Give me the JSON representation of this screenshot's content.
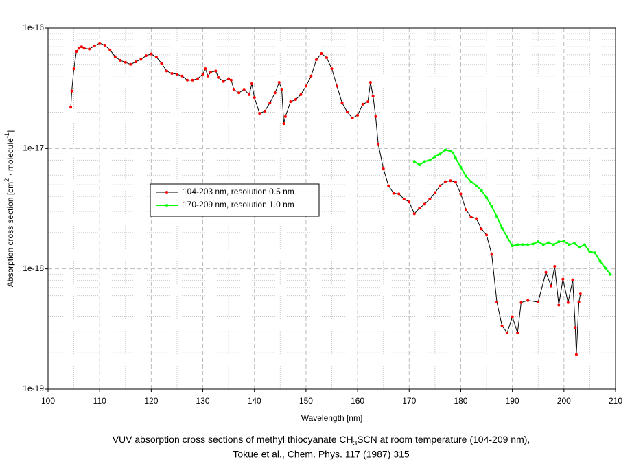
{
  "chart_data": {
    "type": "line",
    "caption": [
      "VUV absorption cross sections of methyl thiocyanate CH",
      "3",
      "SCN at room temperature (104-209 nm),",
      "Tokue et al., Chem. Phys. 117 (1987) 315"
    ],
    "xlabel": "Wavelength [nm]",
    "ylabel": [
      "Absorption cross section [cm",
      "2",
      " · molecule",
      "-1",
      "]"
    ],
    "xlim": [
      100,
      210
    ],
    "xticks": [
      100,
      110,
      120,
      130,
      140,
      150,
      160,
      170,
      180,
      190,
      200,
      210
    ],
    "ylim": [
      1e-19,
      1e-16
    ],
    "yticks": [
      1e-19,
      1e-18,
      1e-17,
      1e-16
    ],
    "log_y": true,
    "grid": true,
    "legend_position": "center-left",
    "series": [
      {
        "name": "104-203 nm, resolution 0.5 nm",
        "color": "#ff0000",
        "line_color": "#000000",
        "x": [
          104.4,
          104.6,
          105,
          105.5,
          106,
          106.5,
          107,
          108,
          109,
          110,
          111,
          112,
          113,
          114,
          115,
          116,
          117,
          118,
          119,
          120,
          121,
          122,
          123,
          124,
          125,
          126,
          127,
          128,
          129,
          130,
          130.5,
          131,
          131.5,
          132.5,
          133,
          134,
          135,
          135.5,
          136,
          137,
          138,
          139,
          139.5,
          140,
          141,
          142,
          143,
          144,
          144.8,
          145.3,
          145.7,
          146,
          147,
          148,
          149,
          150,
          151,
          152,
          153,
          154,
          155,
          156,
          157,
          158,
          159,
          160,
          161,
          162,
          162.5,
          163,
          163.5,
          164,
          165,
          166,
          167,
          168,
          169,
          170,
          171,
          172,
          173,
          174,
          175,
          176,
          177,
          178,
          179,
          180,
          181,
          182,
          183,
          184,
          185,
          186,
          187,
          188,
          189,
          190,
          191,
          191.7,
          193,
          195,
          196.5,
          197.5,
          198.2,
          199,
          199.8,
          200.8,
          201.7,
          202.2,
          202.4,
          202.9,
          203.2
        ],
        "values": [
          2.2e-17,
          3e-17,
          4.6e-17,
          6.4e-17,
          6.8e-17,
          7e-17,
          6.8e-17,
          6.7e-17,
          7.1e-17,
          7.5e-17,
          7.2e-17,
          6.6e-17,
          5.8e-17,
          5.4e-17,
          5.2e-17,
          5e-17,
          5.25e-17,
          5.5e-17,
          5.9e-17,
          6.1e-17,
          5.75e-17,
          5.1e-17,
          4.4e-17,
          4.2e-17,
          4.15e-17,
          4e-17,
          3.7e-17,
          3.7e-17,
          3.8e-17,
          4.15e-17,
          4.6e-17,
          4e-17,
          4.3e-17,
          4.4e-17,
          3.9e-17,
          3.6e-17,
          3.8e-17,
          3.7e-17,
          3.1e-17,
          2.9e-17,
          3.1e-17,
          2.8e-17,
          3.45e-17,
          2.65e-17,
          1.96e-17,
          2.04e-17,
          2.39e-17,
          2.9e-17,
          3.54e-17,
          3.1e-17,
          1.61e-17,
          1.84e-17,
          2.45e-17,
          2.55e-17,
          2.8e-17,
          3.3e-17,
          4e-17,
          5.47e-17,
          6.15e-17,
          5.68e-17,
          4.6e-17,
          3.3e-17,
          2.39e-17,
          2.01e-17,
          1.79e-17,
          1.89e-17,
          2.33e-17,
          2.45e-17,
          3.54e-17,
          2.72e-17,
          1.84e-17,
          1.09e-17,
          6.8e-18,
          4.9e-18,
          4.25e-18,
          4.2e-18,
          3.8e-18,
          3.6e-18,
          2.87e-18,
          3.2e-18,
          3.45e-18,
          3.8e-18,
          4.3e-18,
          4.9e-18,
          5.3e-18,
          5.4e-18,
          5.25e-18,
          4.2e-18,
          3.1e-18,
          2.7e-18,
          2.62e-18,
          2.15e-18,
          1.91e-18,
          1.32e-18,
          5.3e-19,
          3.36e-19,
          2.94e-19,
          4e-19,
          2.94e-19,
          5.25e-19,
          5.47e-19,
          5.3e-19,
          9.36e-19,
          7.2e-19,
          1.05e-18,
          5e-19,
          8.2e-19,
          5.25e-19,
          8.1e-19,
          3.24e-19,
          1.94e-19,
          5.3e-19,
          6.2e-19
        ]
      },
      {
        "name": "170-209 nm, resolution 1.0 nm",
        "color": "#00ff00",
        "line_color": "#00ff00",
        "x": [
          171,
          172,
          173,
          174,
          175,
          176,
          177,
          178,
          178.5,
          179,
          180,
          181,
          182,
          183,
          184,
          185,
          186,
          187,
          188,
          189,
          190,
          191,
          192,
          193,
          194,
          195,
          196,
          197,
          198,
          199,
          200,
          201,
          202,
          203,
          204,
          205,
          206,
          207,
          208,
          209
        ],
        "values": [
          7.8e-18,
          7.3e-18,
          7.8e-18,
          8e-18,
          8.55e-18,
          9e-18,
          9.74e-18,
          9.5e-18,
          9.2e-18,
          8.3e-18,
          7e-18,
          5.9e-18,
          5.3e-18,
          4.9e-18,
          4.5e-18,
          3.9e-18,
          3.3e-18,
          2.72e-18,
          2.18e-18,
          1.84e-18,
          1.55e-18,
          1.59e-18,
          1.59e-18,
          1.59e-18,
          1.61e-18,
          1.68e-18,
          1.59e-18,
          1.65e-18,
          1.59e-18,
          1.68e-18,
          1.7e-18,
          1.59e-18,
          1.63e-18,
          1.51e-18,
          1.59e-18,
          1.39e-18,
          1.36e-18,
          1.16e-18,
          1.016e-18,
          9e-19
        ]
      }
    ]
  }
}
